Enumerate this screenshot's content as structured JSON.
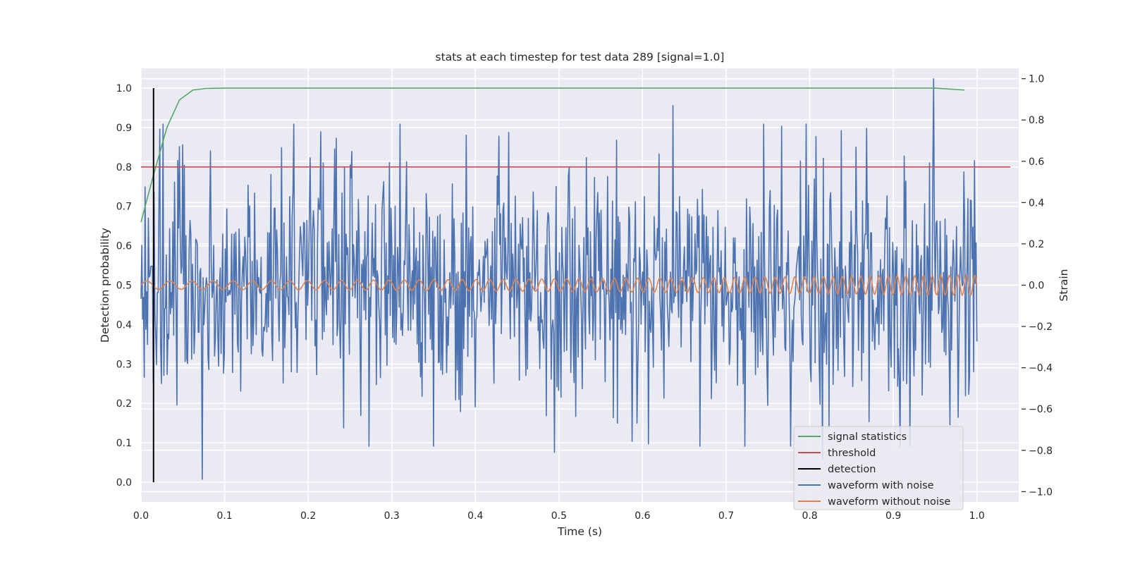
{
  "chart_data": {
    "type": "line",
    "title": "stats at each timestep for test data 289 [signal=1.0]",
    "xlabel": "Time (s)",
    "ylabel_left": "Detection probability",
    "ylabel_right": "Strain",
    "xlim": [
      0.0,
      1.05
    ],
    "ylim_left": [
      -0.05,
      1.05
    ],
    "ylim_right": [
      -1.05,
      1.05
    ],
    "xticks": [
      0.0,
      0.1,
      0.2,
      0.3,
      0.4,
      0.5,
      0.6,
      0.7,
      0.8,
      0.9,
      1.0
    ],
    "xtick_labels": [
      "0.0",
      "0.1",
      "0.2",
      "0.3",
      "0.4",
      "0.5",
      "0.6",
      "0.7",
      "0.8",
      "0.9",
      "1.0"
    ],
    "yticks_left": [
      0.0,
      0.1,
      0.2,
      0.3,
      0.4,
      0.5,
      0.6,
      0.7,
      0.8,
      0.9,
      1.0
    ],
    "ytick_labels_left": [
      "0.0",
      "0.1",
      "0.2",
      "0.3",
      "0.4",
      "0.5",
      "0.6",
      "0.7",
      "0.8",
      "0.9",
      "1.0"
    ],
    "yticks_right": [
      -1.0,
      -0.8,
      -0.6,
      -0.4,
      -0.2,
      0.0,
      0.2,
      0.4,
      0.6,
      0.8,
      1.0
    ],
    "ytick_labels_right": [
      "−1.0",
      "−0.8",
      "−0.6",
      "−0.4",
      "−0.2",
      "0.0",
      "0.2",
      "0.4",
      "0.6",
      "0.8",
      "1.0"
    ],
    "grid": true,
    "legend_position": "lower-right",
    "series": [
      {
        "name": "signal statistics",
        "axis": "left",
        "color": "#55a868",
        "x": [
          0.0,
          0.015,
          0.031,
          0.046,
          0.062,
          0.077,
          0.1,
          0.2,
          0.3,
          0.4,
          0.5,
          0.6,
          0.7,
          0.8,
          0.9,
          0.95,
          0.985
        ],
        "y": [
          0.66,
          0.78,
          0.9,
          0.97,
          0.995,
          0.999,
          1.0,
          1.0,
          1.0,
          1.0,
          1.0,
          1.0,
          1.0,
          1.0,
          1.0,
          1.0,
          0.995
        ]
      },
      {
        "name": "threshold",
        "axis": "left",
        "color": "#c44e52",
        "x": [
          0.0,
          1.04
        ],
        "y": [
          0.8,
          0.8
        ]
      },
      {
        "name": "detection",
        "axis": "left",
        "color": "#000000",
        "x": [
          0.015,
          0.015
        ],
        "y": [
          0.0,
          1.0
        ]
      },
      {
        "name": "waveform with noise",
        "axis": "right",
        "color": "#4c72b0",
        "samples": 1024,
        "x_range": [
          0.0,
          1.0
        ],
        "noise_std": 0.3,
        "noise_seed": 289,
        "peaks": [
          {
            "x": 0.05,
            "y": 0.68
          },
          {
            "x": 0.073,
            "y": -0.94
          },
          {
            "x": 0.31,
            "y": 0.78
          },
          {
            "x": 0.44,
            "y": 0.74
          },
          {
            "x": 0.495,
            "y": -0.81
          },
          {
            "x": 0.636,
            "y": 0.87
          },
          {
            "x": 0.766,
            "y": 0.77
          },
          {
            "x": 0.948,
            "y": 1.0
          },
          {
            "x": 0.815,
            "y": -0.84
          }
        ]
      },
      {
        "name": "waveform without noise",
        "axis": "right",
        "color": "#dd8452",
        "samples": 1024,
        "x_range": [
          0.0,
          1.0
        ],
        "amplitude_start": 0.02,
        "amplitude_end": 0.05,
        "frequency_start_hz": 35,
        "frequency_end_hz": 100
      }
    ]
  }
}
